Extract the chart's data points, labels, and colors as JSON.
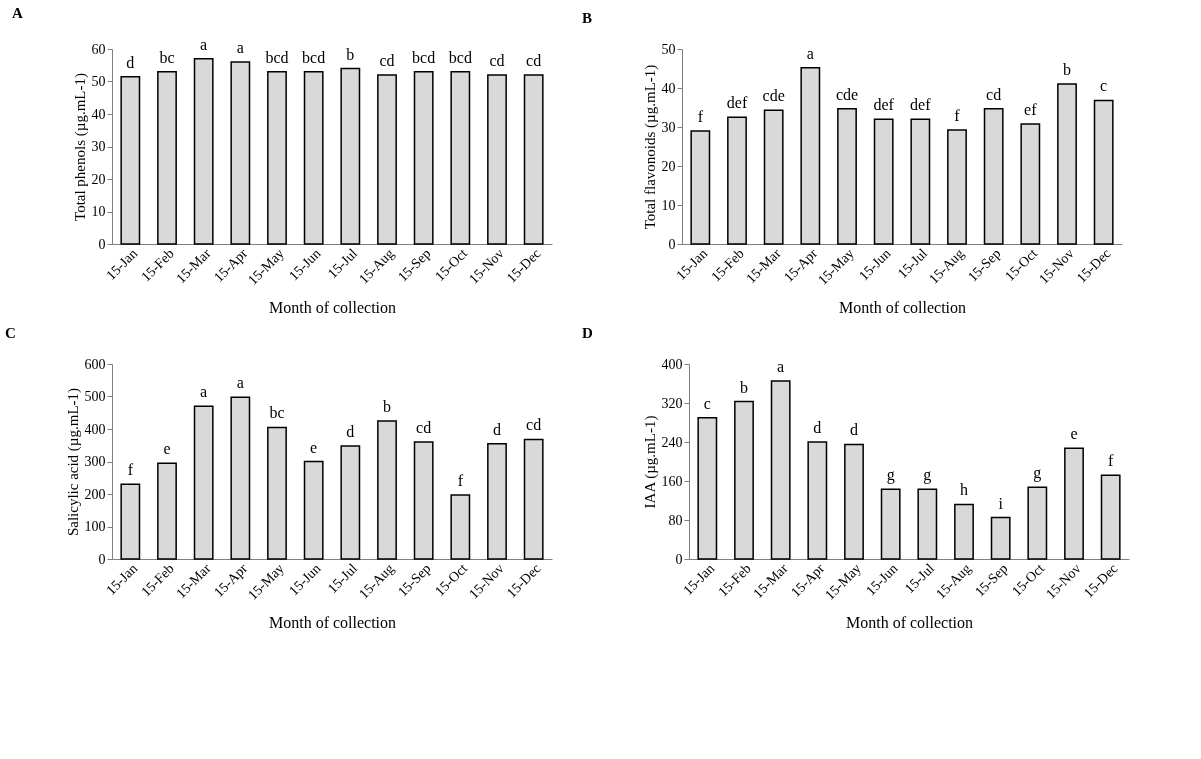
{
  "chart_data": [
    {
      "type": "bar",
      "title": "A",
      "xlabel": "Month of collection",
      "ylabel": "Total phenols (µg.mL-1)",
      "categories": [
        "15-Jan",
        "15-Feb",
        "15-Mar",
        "15-Apr",
        "15-May",
        "15-Jun",
        "15-Jul",
        "15-Aug",
        "15-Sep",
        "15-Oct",
        "15-Nov",
        "15-Dec"
      ],
      "values": [
        51.5,
        53,
        57,
        56,
        53,
        53,
        54,
        52,
        53,
        53,
        52,
        52
      ],
      "color": "#d9d9d9",
      "ylim": [
        0,
        60
      ],
      "yticks": [
        0,
        10,
        20,
        30,
        40,
        50,
        60
      ],
      "grid": false,
      "annotations": [
        {
          "text": "d",
          "x": "15-Jan",
          "y": 51.5
        },
        {
          "text": "bc",
          "x": "15-Feb",
          "y": 53
        },
        {
          "text": "a",
          "x": "15-Mar",
          "y": 57
        },
        {
          "text": "a",
          "x": "15-Apr",
          "y": 56
        },
        {
          "text": "bcd",
          "x": "15-May",
          "y": 53
        },
        {
          "text": "bcd",
          "x": "15-Jun",
          "y": 53
        },
        {
          "text": "b",
          "x": "15-Jul",
          "y": 54
        },
        {
          "text": "cd",
          "x": "15-Aug",
          "y": 52
        },
        {
          "text": "bcd",
          "x": "15-Sep",
          "y": 53
        },
        {
          "text": "bcd",
          "x": "15-Oct",
          "y": 53
        },
        {
          "text": "cd",
          "x": "15-Nov",
          "y": 52
        },
        {
          "text": "cd",
          "x": "15-Dec",
          "y": 52
        }
      ]
    },
    {
      "type": "bar",
      "title": "B",
      "xlabel": "Month of collection",
      "ylabel": "Total flavonoids (µg.mL-1)",
      "categories": [
        "15-Jan",
        "15-Feb",
        "15-Mar",
        "15-Apr",
        "15-May",
        "15-Jun",
        "15-Jul",
        "15-Aug",
        "15-Sep",
        "15-Oct",
        "15-Nov",
        "15-Dec"
      ],
      "values": [
        29,
        32.5,
        34.3,
        45.2,
        34.7,
        32,
        32,
        29.2,
        34.7,
        30.8,
        41,
        36.8
      ],
      "color": "#d9d9d9",
      "ylim": [
        0,
        50
      ],
      "yticks": [
        0,
        10,
        20,
        30,
        40,
        50
      ],
      "grid": false,
      "annotations": [
        {
          "text": "f",
          "x": "15-Jan",
          "y": 29
        },
        {
          "text": "def",
          "x": "15-Feb",
          "y": 32.5
        },
        {
          "text": "cde",
          "x": "15-Mar",
          "y": 34.3
        },
        {
          "text": "a",
          "x": "15-Apr",
          "y": 45.2
        },
        {
          "text": "cde",
          "x": "15-May",
          "y": 34.7
        },
        {
          "text": "def",
          "x": "15-Jun",
          "y": 32
        },
        {
          "text": "def",
          "x": "15-Jul",
          "y": 32
        },
        {
          "text": "f",
          "x": "15-Aug",
          "y": 29.2
        },
        {
          "text": "cd",
          "x": "15-Sep",
          "y": 34.7
        },
        {
          "text": "ef",
          "x": "15-Oct",
          "y": 30.8
        },
        {
          "text": "b",
          "x": "15-Nov",
          "y": 41
        },
        {
          "text": "c",
          "x": "15-Dec",
          "y": 36.8
        }
      ]
    },
    {
      "type": "bar",
      "title": "C",
      "xlabel": "Month of collection",
      "ylabel": "Salicylic acid (µg.mL-1)",
      "categories": [
        "15-Jan",
        "15-Feb",
        "15-Mar",
        "15-Apr",
        "15-May",
        "15-Jun",
        "15-Jul",
        "15-Aug",
        "15-Sep",
        "15-Oct",
        "15-Nov",
        "15-Dec"
      ],
      "values": [
        230,
        295,
        470,
        498,
        405,
        300,
        348,
        425,
        360,
        197,
        355,
        368
      ],
      "color": "#d9d9d9",
      "ylim": [
        0,
        600
      ],
      "yticks": [
        0,
        100,
        200,
        300,
        400,
        500,
        600
      ],
      "grid": false,
      "annotations": [
        {
          "text": "f",
          "x": "15-Jan",
          "y": 230
        },
        {
          "text": "e",
          "x": "15-Feb",
          "y": 295
        },
        {
          "text": "a",
          "x": "15-Mar",
          "y": 470
        },
        {
          "text": "a",
          "x": "15-Apr",
          "y": 498
        },
        {
          "text": "bc",
          "x": "15-May",
          "y": 405
        },
        {
          "text": "e",
          "x": "15-Jun",
          "y": 300
        },
        {
          "text": "d",
          "x": "15-Jul",
          "y": 348
        },
        {
          "text": "b",
          "x": "15-Aug",
          "y": 425
        },
        {
          "text": "cd",
          "x": "15-Sep",
          "y": 360
        },
        {
          "text": "f",
          "x": "15-Oct",
          "y": 197
        },
        {
          "text": "d",
          "x": "15-Nov",
          "y": 355
        },
        {
          "text": "cd",
          "x": "15-Dec",
          "y": 368
        }
      ]
    },
    {
      "type": "bar",
      "title": "D",
      "xlabel": "Month of collection",
      "ylabel": "IAA (µg.mL-1)",
      "categories": [
        "15-Jan",
        "15-Feb",
        "15-Mar",
        "15-Apr",
        "15-May",
        "15-Jun",
        "15-Jul",
        "15-Aug",
        "15-Sep",
        "15-Oct",
        "15-Nov",
        "15-Dec"
      ],
      "values": [
        290,
        323,
        365,
        240,
        235,
        143,
        143,
        112,
        85,
        147,
        227,
        172
      ],
      "color": "#d9d9d9",
      "ylim": [
        0,
        400
      ],
      "yticks": [
        0,
        80,
        160,
        240,
        320,
        400
      ],
      "grid": false,
      "annotations": [
        {
          "text": "c",
          "x": "15-Jan",
          "y": 290
        },
        {
          "text": "b",
          "x": "15-Feb",
          "y": 323
        },
        {
          "text": "a",
          "x": "15-Mar",
          "y": 365
        },
        {
          "text": "d",
          "x": "15-Apr",
          "y": 240
        },
        {
          "text": "d",
          "x": "15-May",
          "y": 235
        },
        {
          "text": "g",
          "x": "15-Jun",
          "y": 143
        },
        {
          "text": "g",
          "x": "15-Jul",
          "y": 143
        },
        {
          "text": "h",
          "x": "15-Aug",
          "y": 112
        },
        {
          "text": "i",
          "x": "15-Sep",
          "y": 85
        },
        {
          "text": "g",
          "x": "15-Oct",
          "y": 147
        },
        {
          "text": "e",
          "x": "15-Nov",
          "y": 227
        },
        {
          "text": "f",
          "x": "15-Dec",
          "y": 172
        }
      ]
    }
  ]
}
